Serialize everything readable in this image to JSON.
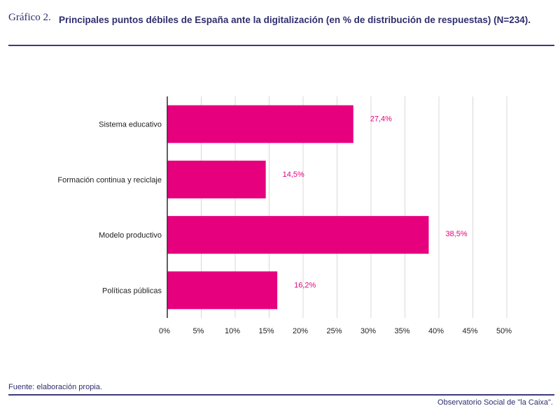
{
  "figure": {
    "label": "Gráfico 2.",
    "title": "Principales puntos débiles de España ante la digitalización (en % de distribución de respuestas) (N=234)."
  },
  "footer": {
    "source": "Fuente: elaboración propia.",
    "brand": "Observatorio Social de \"la Caixa\"."
  },
  "colors": {
    "bar": "#E6007E",
    "label": "#E6007E",
    "grid": "#d8d8d8",
    "axis": "#2a2a2a",
    "text": "#222222"
  },
  "chart_data": {
    "type": "bar",
    "orientation": "horizontal",
    "categories": [
      "Sistema educativo",
      "Formación continua y reciclaje",
      "Modelo productivo",
      "Políticas públicas"
    ],
    "values": [
      27.4,
      14.5,
      38.5,
      16.2
    ],
    "value_labels": [
      "27,4%",
      "14,5%",
      "38,5%",
      "16,2%"
    ],
    "xlim": [
      0,
      50
    ],
    "xticks": [
      0,
      5,
      10,
      15,
      20,
      25,
      30,
      35,
      40,
      45,
      50
    ],
    "xtick_labels": [
      "0%",
      "5%",
      "10%",
      "15%",
      "20%",
      "25%",
      "30%",
      "35%",
      "40%",
      "45%",
      "50%"
    ],
    "title": "Principales puntos débiles de España ante la digitalización (en % de distribución de respuestas) (N=234).",
    "xlabel": "",
    "ylabel": "",
    "grid": true
  }
}
